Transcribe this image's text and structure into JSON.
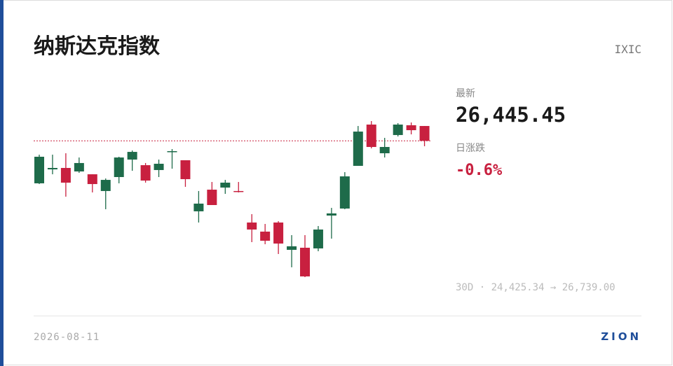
{
  "header": {
    "title": "纳斯达克指数",
    "ticker": "IXIC"
  },
  "chart_data": {
    "type": "candlestick",
    "open": [
      25816,
      26023,
      26044,
      25992,
      25950,
      25702,
      25909,
      26168,
      26085,
      26013,
      26282,
      26158,
      25401,
      25722,
      25753,
      25702,
      25235,
      25100,
      25235,
      24830,
      24861,
      24851,
      25338,
      25442,
      26075,
      26687,
      26262,
      26532,
      26677,
      26666
    ],
    "high": [
      26241,
      26241,
      26262,
      26199,
      25950,
      25888,
      26210,
      26303,
      26117,
      26168,
      26324,
      26158,
      25702,
      25836,
      25867,
      25836,
      25359,
      25214,
      25255,
      25048,
      25048,
      25183,
      25452,
      25982,
      26666,
      26739,
      26490,
      26708,
      26718,
      26666
    ],
    "low": [
      25805,
      25950,
      25618,
      25971,
      25681,
      25432,
      25816,
      26002,
      25826,
      25909,
      26033,
      25764,
      25235,
      25494,
      25660,
      25681,
      24944,
      24913,
      24768,
      24571,
      24425.34,
      24809,
      24996,
      25432,
      26075,
      26334,
      26199,
      26511,
      26542,
      26366
    ],
    "close": [
      26210,
      26044,
      25826,
      26117,
      25805,
      25867,
      26199,
      26282,
      25857,
      26106,
      26293,
      25878,
      25515,
      25494,
      25826,
      25691,
      25131,
      24965,
      24923,
      24882,
      24436,
      25131,
      25370,
      25919,
      26583,
      26355,
      26355,
      26687,
      26604,
      26445.45
    ],
    "up_color": "#1e6b4a",
    "down_color": "#c8203f",
    "ylim": [
      24425.34,
      26739
    ],
    "last": {
      "value": 26445.45,
      "label": "26,445.45"
    },
    "last_caption": "最新",
    "change": {
      "value": -0.6,
      "label": "-0.6%"
    },
    "change_caption": "日涨跌",
    "range_label": "30D · 24,425.34 → 26,739.00"
  },
  "footer": {
    "date": "2026-08-11",
    "brand": "ZION"
  }
}
